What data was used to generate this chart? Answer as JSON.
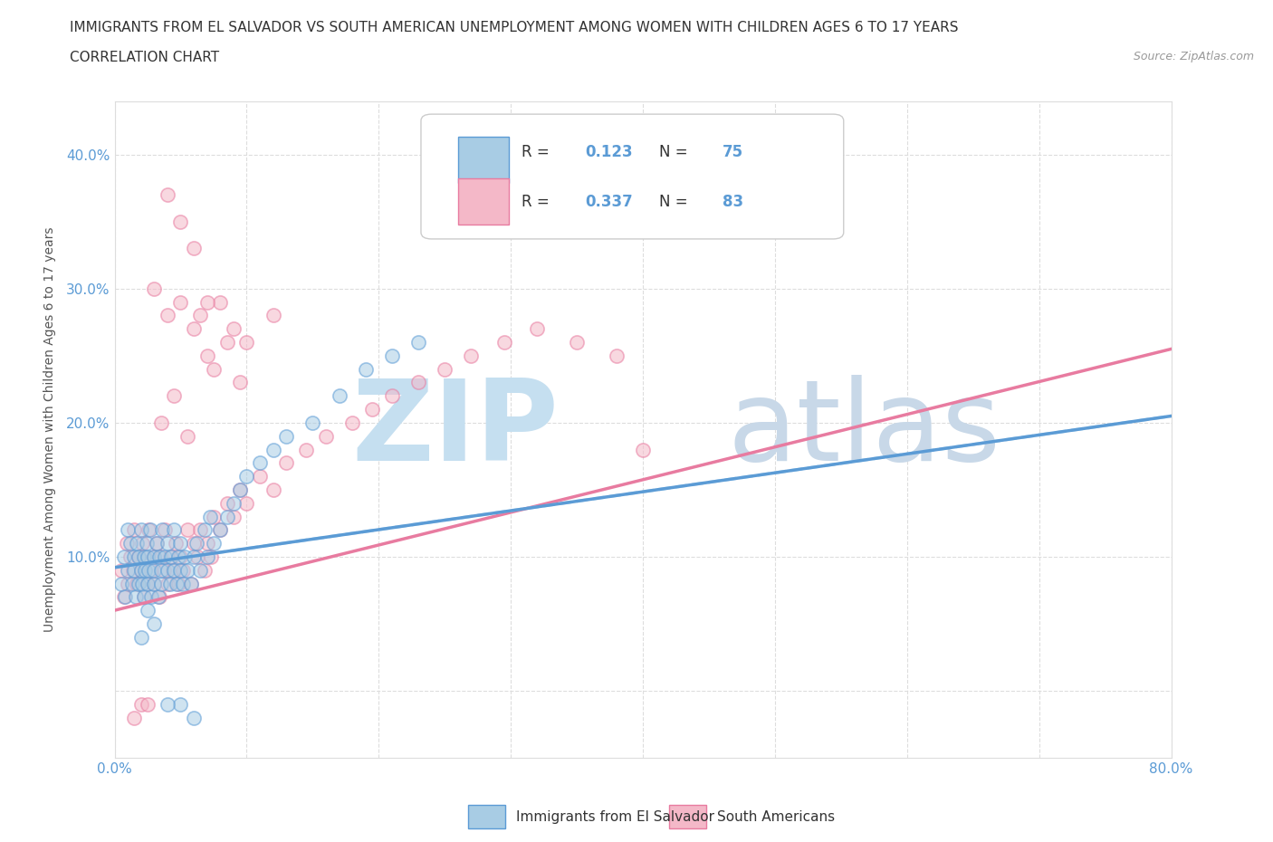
{
  "title_line1": "IMMIGRANTS FROM EL SALVADOR VS SOUTH AMERICAN UNEMPLOYMENT AMONG WOMEN WITH CHILDREN AGES 6 TO 17 YEARS",
  "title_line2": "CORRELATION CHART",
  "source_text": "Source: ZipAtlas.com",
  "ylabel": "Unemployment Among Women with Children Ages 6 to 17 years",
  "xlim": [
    0.0,
    0.8
  ],
  "ylim": [
    -0.05,
    0.44
  ],
  "xticks": [
    0.0,
    0.1,
    0.2,
    0.3,
    0.4,
    0.5,
    0.6,
    0.7,
    0.8
  ],
  "xticklabels": [
    "0.0%",
    "",
    "",
    "",
    "",
    "",
    "",
    "",
    "80.0%"
  ],
  "yticks": [
    0.0,
    0.1,
    0.2,
    0.3,
    0.4
  ],
  "yticklabels": [
    "",
    "10.0%",
    "20.0%",
    "30.0%",
    "40.0%"
  ],
  "watermark_part1": "ZIP",
  "watermark_part2": "atlas",
  "legend_r1": "R = ",
  "legend_v1": "0.123",
  "legend_n1_label": "N = ",
  "legend_n1": "75",
  "legend_r2": "R = ",
  "legend_v2": "0.337",
  "legend_n2_label": "N = ",
  "legend_n2": "83",
  "color_blue": "#a8cce4",
  "color_pink": "#f4b8c8",
  "color_blue_dark": "#5b9bd5",
  "color_pink_dark": "#e87ba0",
  "color_blue_solid": "#5b9bd5",
  "color_pink_solid": "#e87ba0",
  "color_blue_dashed": "#a8d4f0",
  "blue_scatter_x": [
    0.005,
    0.007,
    0.008,
    0.01,
    0.01,
    0.012,
    0.013,
    0.015,
    0.015,
    0.016,
    0.017,
    0.018,
    0.018,
    0.02,
    0.02,
    0.021,
    0.022,
    0.022,
    0.023,
    0.024,
    0.025,
    0.025,
    0.026,
    0.027,
    0.028,
    0.03,
    0.03,
    0.03,
    0.032,
    0.033,
    0.034,
    0.035,
    0.035,
    0.036,
    0.038,
    0.04,
    0.04,
    0.042,
    0.043,
    0.045,
    0.045,
    0.047,
    0.048,
    0.05,
    0.05,
    0.052,
    0.053,
    0.055,
    0.058,
    0.06,
    0.062,
    0.065,
    0.068,
    0.07,
    0.072,
    0.075,
    0.08,
    0.085,
    0.09,
    0.095,
    0.1,
    0.11,
    0.12,
    0.13,
    0.15,
    0.17,
    0.19,
    0.21,
    0.23,
    0.05,
    0.06,
    0.04,
    0.03,
    0.025,
    0.02
  ],
  "blue_scatter_y": [
    0.08,
    0.1,
    0.07,
    0.12,
    0.09,
    0.11,
    0.08,
    0.1,
    0.09,
    0.07,
    0.11,
    0.08,
    0.1,
    0.09,
    0.12,
    0.08,
    0.1,
    0.07,
    0.09,
    0.11,
    0.08,
    0.1,
    0.09,
    0.12,
    0.07,
    0.1,
    0.08,
    0.09,
    0.11,
    0.07,
    0.1,
    0.08,
    0.09,
    0.12,
    0.1,
    0.09,
    0.11,
    0.08,
    0.1,
    0.09,
    0.12,
    0.08,
    0.1,
    0.09,
    0.11,
    0.08,
    0.1,
    0.09,
    0.08,
    0.1,
    0.11,
    0.09,
    0.12,
    0.1,
    0.13,
    0.11,
    0.12,
    0.13,
    0.14,
    0.15,
    0.16,
    0.17,
    0.18,
    0.19,
    0.2,
    0.22,
    0.24,
    0.25,
    0.26,
    -0.01,
    -0.02,
    -0.01,
    0.05,
    0.06,
    0.04
  ],
  "pink_scatter_x": [
    0.005,
    0.007,
    0.009,
    0.01,
    0.012,
    0.014,
    0.015,
    0.017,
    0.018,
    0.02,
    0.021,
    0.022,
    0.023,
    0.025,
    0.026,
    0.028,
    0.03,
    0.03,
    0.032,
    0.034,
    0.035,
    0.037,
    0.038,
    0.04,
    0.042,
    0.044,
    0.046,
    0.048,
    0.05,
    0.052,
    0.055,
    0.058,
    0.06,
    0.063,
    0.065,
    0.068,
    0.07,
    0.073,
    0.075,
    0.08,
    0.085,
    0.09,
    0.095,
    0.1,
    0.11,
    0.12,
    0.13,
    0.145,
    0.16,
    0.18,
    0.195,
    0.21,
    0.23,
    0.25,
    0.27,
    0.295,
    0.32,
    0.35,
    0.38,
    0.02,
    0.015,
    0.025,
    0.035,
    0.045,
    0.055,
    0.065,
    0.075,
    0.085,
    0.095,
    0.03,
    0.04,
    0.05,
    0.06,
    0.07,
    0.08,
    0.09,
    0.1,
    0.12,
    0.04,
    0.05,
    0.06,
    0.07,
    0.4
  ],
  "pink_scatter_y": [
    0.09,
    0.07,
    0.11,
    0.08,
    0.1,
    0.09,
    0.12,
    0.08,
    0.1,
    0.09,
    0.11,
    0.07,
    0.1,
    0.08,
    0.12,
    0.09,
    0.1,
    0.08,
    0.11,
    0.07,
    0.1,
    0.09,
    0.12,
    0.08,
    0.1,
    0.09,
    0.11,
    0.08,
    0.1,
    0.09,
    0.12,
    0.08,
    0.11,
    0.1,
    0.12,
    0.09,
    0.11,
    0.1,
    0.13,
    0.12,
    0.14,
    0.13,
    0.15,
    0.14,
    0.16,
    0.15,
    0.17,
    0.18,
    0.19,
    0.2,
    0.21,
    0.22,
    0.23,
    0.24,
    0.25,
    0.26,
    0.27,
    0.26,
    0.25,
    -0.01,
    -0.02,
    -0.01,
    0.2,
    0.22,
    0.19,
    0.28,
    0.24,
    0.26,
    0.23,
    0.3,
    0.28,
    0.29,
    0.27,
    0.25,
    0.29,
    0.27,
    0.26,
    0.28,
    0.37,
    0.35,
    0.33,
    0.29,
    0.18
  ],
  "blue_line_x": [
    0.0,
    0.8
  ],
  "blue_line_y": [
    0.092,
    0.205
  ],
  "pink_line_x": [
    0.0,
    0.8
  ],
  "pink_line_y": [
    0.06,
    0.255
  ],
  "background_color": "#ffffff",
  "grid_color": "#dddddd",
  "title_color": "#333333",
  "axis_label_color": "#555555",
  "tick_color": "#5b9bd5",
  "watermark_blue_color": "#c5dff0",
  "watermark_gray_color": "#c8d8e8",
  "title_fontsize": 11,
  "subtitle_fontsize": 11,
  "source_fontsize": 9,
  "ylabel_fontsize": 10,
  "tick_fontsize": 11,
  "legend_fontsize": 12,
  "scatter_size": 120,
  "scatter_alpha": 0.55,
  "line_width": 2.5
}
